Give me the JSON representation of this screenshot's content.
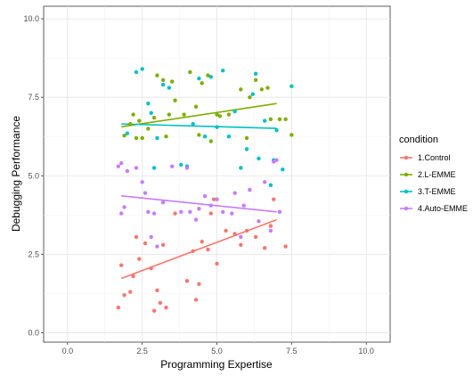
{
  "chart_data": {
    "type": "scatter",
    "xlabel": "Programming Expertise",
    "ylabel": "Debugging Performance",
    "xlim": [
      -0.8,
      10.8
    ],
    "ylim": [
      -0.3,
      10.4
    ],
    "x_ticks": [
      "0.0",
      "2.5",
      "5.0",
      "7.5",
      "10.0"
    ],
    "y_ticks": [
      "0.0",
      "2.5",
      "5.0",
      "7.5",
      "10.0"
    ],
    "x_tick_values": [
      0,
      2.5,
      5,
      7.5,
      10
    ],
    "y_tick_values": [
      0,
      2.5,
      5,
      7.5,
      10
    ],
    "grid": true,
    "legend": {
      "title": "condition",
      "placement": "right"
    },
    "series": [
      {
        "name": "1.Control",
        "color": "#F8766D",
        "fit": [
          [
            1.8,
            1.73
          ],
          [
            7.0,
            3.6
          ]
        ],
        "points": [
          [
            1.7,
            0.8
          ],
          [
            1.8,
            2.15
          ],
          [
            1.9,
            1.2
          ],
          [
            2.1,
            1.3
          ],
          [
            2.2,
            1.8
          ],
          [
            2.3,
            3.05
          ],
          [
            2.4,
            2.35
          ],
          [
            2.6,
            2.85
          ],
          [
            2.8,
            2.05
          ],
          [
            2.9,
            0.7
          ],
          [
            3.0,
            1.35
          ],
          [
            3.1,
            0.95
          ],
          [
            3.2,
            2.8
          ],
          [
            3.3,
            0.8
          ],
          [
            3.6,
            3.8
          ],
          [
            4.0,
            1.65
          ],
          [
            4.2,
            2.6
          ],
          [
            4.3,
            1.05
          ],
          [
            4.4,
            1.55
          ],
          [
            4.5,
            2.9
          ],
          [
            4.7,
            2.65
          ],
          [
            4.8,
            3.8
          ],
          [
            4.9,
            4.25
          ],
          [
            5.0,
            2.2
          ],
          [
            5.3,
            3.25
          ],
          [
            5.6,
            3.15
          ],
          [
            5.8,
            2.8
          ],
          [
            6.0,
            3.25
          ],
          [
            6.3,
            3.05
          ],
          [
            6.6,
            2.7
          ],
          [
            6.8,
            3.4
          ],
          [
            6.9,
            4.25
          ],
          [
            7.1,
            3.85
          ],
          [
            7.3,
            2.75
          ]
        ]
      },
      {
        "name": "2.L-EMME",
        "color": "#7CAE00",
        "fit": [
          [
            1.8,
            6.56
          ],
          [
            7.0,
            7.3
          ]
        ],
        "points": [
          [
            1.9,
            6.28
          ],
          [
            2.1,
            6.65
          ],
          [
            2.2,
            6.95
          ],
          [
            2.3,
            6.2
          ],
          [
            2.4,
            6.75
          ],
          [
            2.5,
            6.2
          ],
          [
            2.7,
            6.5
          ],
          [
            2.9,
            6.85
          ],
          [
            3.0,
            8.2
          ],
          [
            3.2,
            8.05
          ],
          [
            3.3,
            6.25
          ],
          [
            3.4,
            6.95
          ],
          [
            3.5,
            8.0
          ],
          [
            3.6,
            7.4
          ],
          [
            3.9,
            6.95
          ],
          [
            4.1,
            8.3
          ],
          [
            4.3,
            7.2
          ],
          [
            4.4,
            6.3
          ],
          [
            4.5,
            7.95
          ],
          [
            4.7,
            8.2
          ],
          [
            4.8,
            6.1
          ],
          [
            5.0,
            6.95
          ],
          [
            5.1,
            6.9
          ],
          [
            5.4,
            6.95
          ],
          [
            5.8,
            7.75
          ],
          [
            6.0,
            6.2
          ],
          [
            6.1,
            7.5
          ],
          [
            6.3,
            8.05
          ],
          [
            6.5,
            7.75
          ],
          [
            6.7,
            7.8
          ],
          [
            6.8,
            6.8
          ],
          [
            7.1,
            6.8
          ],
          [
            7.3,
            6.8
          ],
          [
            7.5,
            6.3
          ]
        ]
      },
      {
        "name": "3.T-EMME",
        "color": "#00BFC4",
        "fit": [
          [
            1.8,
            6.65
          ],
          [
            7.0,
            6.51
          ]
        ],
        "points": [
          [
            2.0,
            6.35
          ],
          [
            2.3,
            8.3
          ],
          [
            2.5,
            8.4
          ],
          [
            2.7,
            7.3
          ],
          [
            2.8,
            7.0
          ],
          [
            2.9,
            5.25
          ],
          [
            3.0,
            6.2
          ],
          [
            3.2,
            7.9
          ],
          [
            3.4,
            7.8
          ],
          [
            3.8,
            5.35
          ],
          [
            4.0,
            5.3
          ],
          [
            4.2,
            6.65
          ],
          [
            4.4,
            8.1
          ],
          [
            4.6,
            6.25
          ],
          [
            4.8,
            8.15
          ],
          [
            5.0,
            6.55
          ],
          [
            5.2,
            8.35
          ],
          [
            5.4,
            6.25
          ],
          [
            5.6,
            7.05
          ],
          [
            5.8,
            5.25
          ],
          [
            6.0,
            5.85
          ],
          [
            6.2,
            7.6
          ],
          [
            6.3,
            8.25
          ],
          [
            6.4,
            5.55
          ],
          [
            6.6,
            6.75
          ],
          [
            6.8,
            4.7
          ],
          [
            7.0,
            6.45
          ],
          [
            7.2,
            5.2
          ],
          [
            7.5,
            7.85
          ],
          [
            6.9,
            5.5
          ]
        ]
      },
      {
        "name": "4.Auto-EMME",
        "color": "#C77CFF",
        "fit": [
          [
            1.8,
            4.36
          ],
          [
            7.0,
            3.85
          ]
        ],
        "points": [
          [
            1.7,
            5.3
          ],
          [
            1.8,
            5.4
          ],
          [
            1.8,
            3.8
          ],
          [
            1.9,
            4.0
          ],
          [
            2.0,
            5.15
          ],
          [
            2.3,
            5.25
          ],
          [
            2.5,
            4.8
          ],
          [
            2.6,
            4.45
          ],
          [
            2.7,
            3.85
          ],
          [
            2.8,
            3.05
          ],
          [
            2.9,
            3.8
          ],
          [
            3.0,
            2.75
          ],
          [
            3.2,
            4.15
          ],
          [
            3.5,
            5.3
          ],
          [
            3.8,
            3.85
          ],
          [
            4.0,
            5.25
          ],
          [
            4.1,
            3.85
          ],
          [
            4.3,
            3.6
          ],
          [
            4.4,
            3.95
          ],
          [
            4.6,
            4.35
          ],
          [
            4.8,
            4.05
          ],
          [
            5.0,
            4.25
          ],
          [
            5.2,
            3.85
          ],
          [
            5.5,
            3.8
          ],
          [
            5.6,
            4.45
          ],
          [
            5.8,
            3.05
          ],
          [
            5.9,
            4.05
          ],
          [
            6.1,
            4.55
          ],
          [
            6.4,
            3.55
          ],
          [
            6.6,
            4.8
          ],
          [
            6.8,
            3.25
          ],
          [
            6.9,
            5.45
          ],
          [
            7.1,
            3.85
          ],
          [
            7.0,
            5.5
          ]
        ]
      }
    ]
  }
}
